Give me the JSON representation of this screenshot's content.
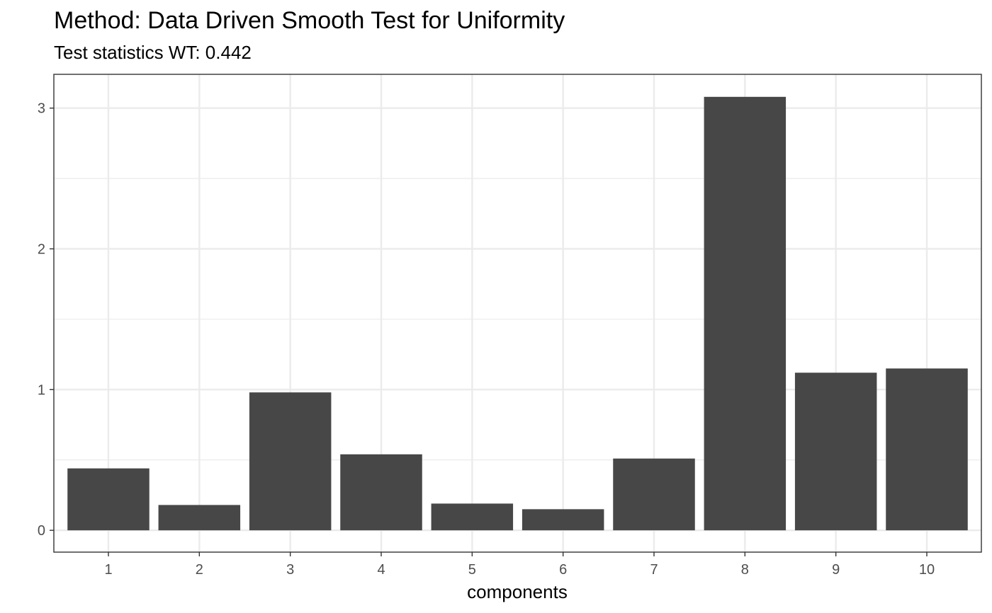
{
  "chart_data": {
    "type": "bar",
    "title": "Method: Data Driven Smooth Test for Uniformity",
    "subtitle": "Test statistics WT: 0.442",
    "xlabel": "components",
    "ylabel": "",
    "categories": [
      "1",
      "2",
      "3",
      "4",
      "5",
      "6",
      "7",
      "8",
      "9",
      "10"
    ],
    "values": [
      0.44,
      0.18,
      0.98,
      0.54,
      0.19,
      0.15,
      0.51,
      3.08,
      1.12,
      1.15
    ],
    "y_ticks": [
      "0",
      "1",
      "2",
      "3"
    ],
    "ylim": [
      -0.155,
      3.24
    ],
    "grid": true,
    "bar_color": "#474747",
    "grid_color": "#ebebeb",
    "panel_border_color": "#333333"
  }
}
